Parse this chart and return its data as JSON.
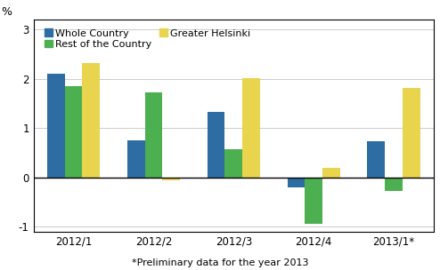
{
  "categories": [
    "2012/1",
    "2012/2",
    "2012/3",
    "2012/4",
    "2013/1*"
  ],
  "series": {
    "Whole Country": [
      2.1,
      0.75,
      1.33,
      -0.2,
      0.73
    ],
    "Rest of the Country": [
      1.85,
      1.73,
      0.57,
      -0.93,
      -0.27
    ],
    "Greater Helsinki": [
      2.33,
      -0.05,
      2.02,
      0.19,
      1.82
    ]
  },
  "colors": {
    "Whole Country": "#2E6DA4",
    "Rest of the Country": "#4CAF50",
    "Greater Helsinki": "#E8D44D"
  },
  "ylim": [
    -1.1,
    3.2
  ],
  "yticks": [
    -1,
    0,
    1,
    2,
    3
  ],
  "ylabel_text": "%",
  "footnote": "*Preliminary data for the year 2013",
  "bar_width": 0.22,
  "legend_order": [
    "Whole Country",
    "Rest of the Country",
    "Greater Helsinki"
  ]
}
